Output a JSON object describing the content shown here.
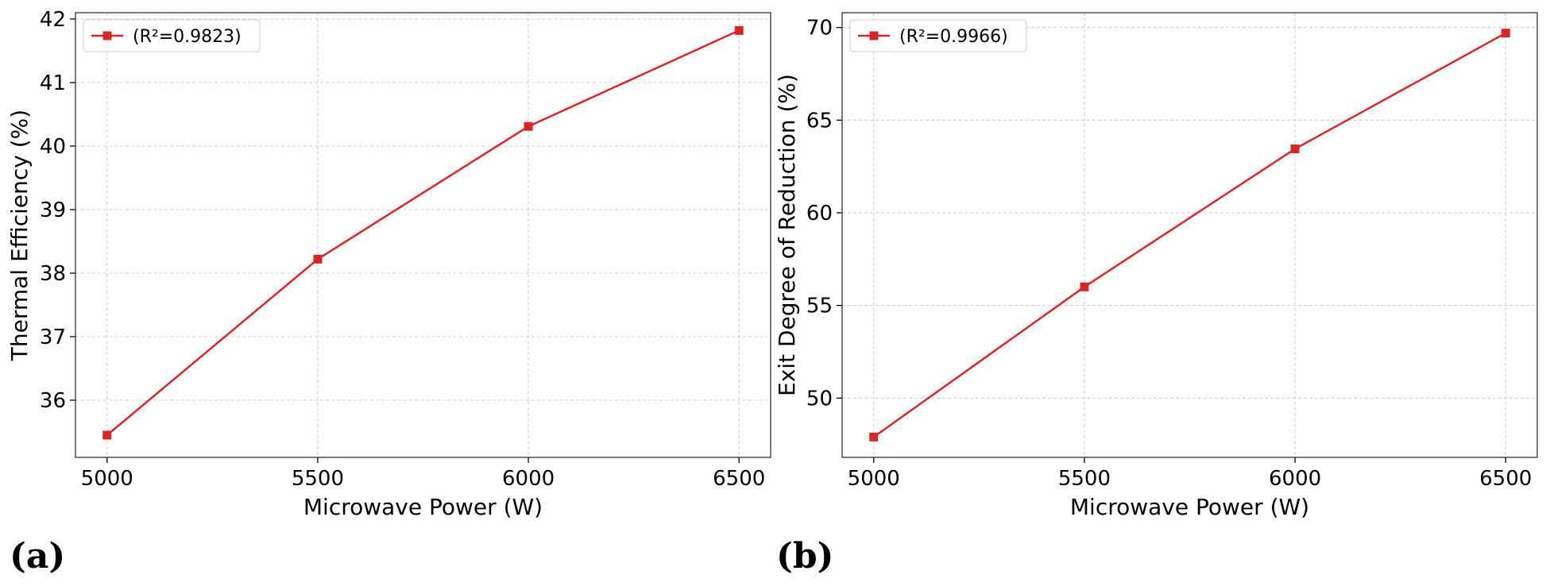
{
  "colors": {
    "series": "#d62728",
    "grid": "#cccccc",
    "frame": "#333333"
  },
  "chart_data": [
    {
      "type": "line",
      "panel_label": "(a)",
      "xlabel": "Microwave Power (W)",
      "ylabel": "Thermal Efficiency (%)",
      "xlim": [
        4925,
        6575
      ],
      "ylim": [
        35.1,
        42.1
      ],
      "xticks": [
        5000,
        5500,
        6000,
        6500
      ],
      "yticks": [
        36,
        37,
        38,
        39,
        40,
        41,
        42
      ],
      "grid": true,
      "legend_position": "top-left",
      "series": [
        {
          "name": "(R²=0.9823)",
          "marker": "square",
          "x": [
            5000,
            5500,
            6000,
            6500
          ],
          "y": [
            35.45,
            38.22,
            40.31,
            41.82
          ]
        }
      ]
    },
    {
      "type": "line",
      "panel_label": "(b)",
      "xlabel": "Microwave Power (W)",
      "ylabel": "Exit Degree of Reduction (%)",
      "xlim": [
        4925,
        6575
      ],
      "ylim": [
        46.8,
        70.8
      ],
      "xticks": [
        5000,
        5500,
        6000,
        6500
      ],
      "yticks": [
        50,
        55,
        60,
        65,
        70
      ],
      "grid": true,
      "legend_position": "top-left",
      "series": [
        {
          "name": "(R²=0.9966)",
          "marker": "square",
          "x": [
            5000,
            5500,
            6000,
            6500
          ],
          "y": [
            47.9,
            56.0,
            63.45,
            69.7
          ]
        }
      ]
    }
  ]
}
